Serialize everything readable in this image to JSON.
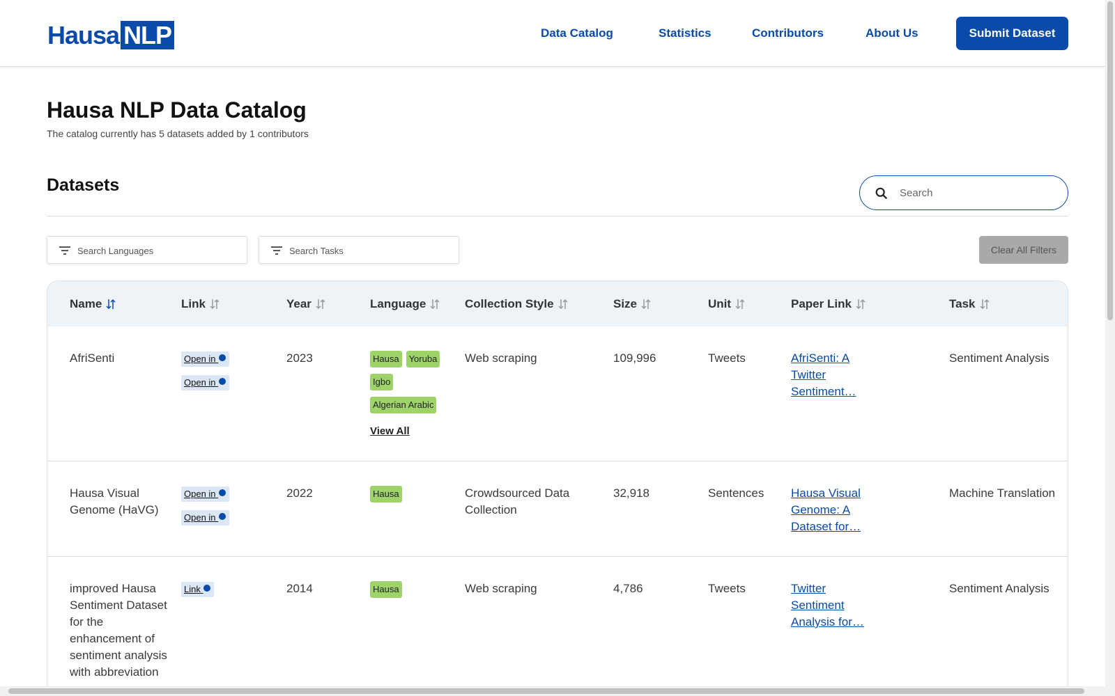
{
  "header": {
    "logo": {
      "part1": "Hausa",
      "part2": "NLP"
    },
    "nav": [
      "Data Catalog",
      "Statistics",
      "Contributors",
      "About Us"
    ],
    "button": "Submit Dataset"
  },
  "hero": {
    "title": "Hausa NLP Data Catalog",
    "subtitle": "The catalog currently has 5 datasets added by 1 contributors"
  },
  "section": {
    "title": "Datasets",
    "search_placeholder": "Search"
  },
  "filters": {
    "languages_placeholder": "Search Languages",
    "tasks_placeholder": "Search Tasks",
    "clear": "Clear All Filters"
  },
  "table": {
    "columns": [
      "Name",
      "Link",
      "Year",
      "Language",
      "Collection Style",
      "Size",
      "Unit",
      "Paper Link",
      "Task"
    ],
    "rows": [
      {
        "name": "AfriSenti",
        "links": [
          "Open in",
          "Open in"
        ],
        "year": "2023",
        "languages": [
          "Hausa",
          "Yoruba",
          "Igbo",
          "Algerian Arabic"
        ],
        "view_all": "View All",
        "collection": "Web scraping",
        "size": "109,996",
        "unit": "Tweets",
        "paper": "AfriSenti: A Twitter Sentiment…",
        "task": "Sentiment Analysis"
      },
      {
        "name": "Hausa Visual Genome (HaVG)",
        "links": [
          "Open in",
          "Open in"
        ],
        "year": "2022",
        "languages": [
          "Hausa"
        ],
        "collection": "Crowdsourced Data Collection",
        "size": "32,918",
        "unit": "Sentences",
        "paper": "Hausa Visual Genome: A Dataset for…",
        "task": "Machine Translation"
      },
      {
        "name": "improved Hausa Sentiment Dataset for the enhancement of sentiment analysis with abbreviation",
        "links": [
          "Link"
        ],
        "year": "2014",
        "languages": [
          "Hausa"
        ],
        "collection": "Web scraping",
        "size": "4,786",
        "unit": "Tweets",
        "paper": "Twitter Sentiment Analysis for…",
        "task": "Sentiment Analysis"
      }
    ]
  }
}
